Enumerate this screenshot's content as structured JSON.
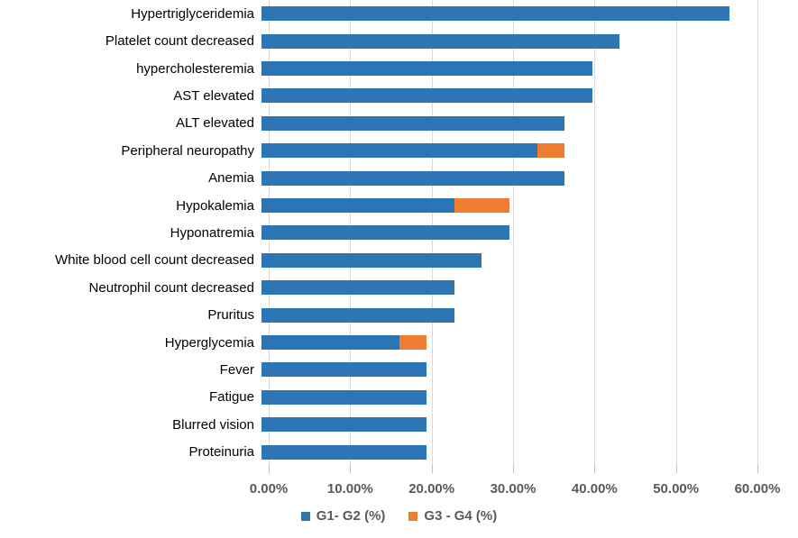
{
  "chart_data": {
    "type": "bar",
    "orientation": "horizontal",
    "stacked": true,
    "title": "",
    "xlabel": "",
    "ylabel": "",
    "xlim": [
      0,
      60
    ],
    "grid": true,
    "legend_position": "bottom",
    "x_tick_labels": [
      "0.00%",
      "10.00%",
      "20.00%",
      "30.00%",
      "40.00%",
      "50.00%",
      "60.00%"
    ],
    "categories": [
      "Hypertriglyceridemia",
      "Platelet count decreased",
      "hypercholesteremia",
      "AST elevated",
      "ALT elevated",
      "Peripheral neuropathy",
      "Anemia",
      "Hypokalemia",
      "Hyponatremia",
      "White blood cell count decreased",
      "Neutrophil count decreased",
      "Pruritus",
      "Hyperglycemia",
      "Fever",
      "Fatigue",
      "Blurred vision",
      "Proteinuria"
    ],
    "series": [
      {
        "name": "G1- G2 (%)",
        "color": "#2E75B6",
        "values": [
          56.67,
          43.33,
          40.0,
          40.0,
          36.67,
          33.33,
          36.67,
          23.33,
          30.0,
          26.67,
          23.33,
          23.33,
          16.67,
          20.0,
          20.0,
          20.0,
          20.0
        ]
      },
      {
        "name": "G3 - G4 (%)",
        "color": "#ED7D31",
        "values": [
          0,
          0,
          0,
          0,
          0,
          3.33,
          0,
          6.67,
          0,
          0,
          0,
          0,
          3.33,
          0,
          0,
          0,
          0
        ]
      }
    ]
  },
  "colors": {
    "series_blue": "#2E75B6",
    "series_orange": "#ED7D31",
    "gridline": "#D9D9D9",
    "tick": "#BFBFBF",
    "axis_text": "#595959",
    "category_text": "#000000",
    "background": "#FFFFFF"
  }
}
